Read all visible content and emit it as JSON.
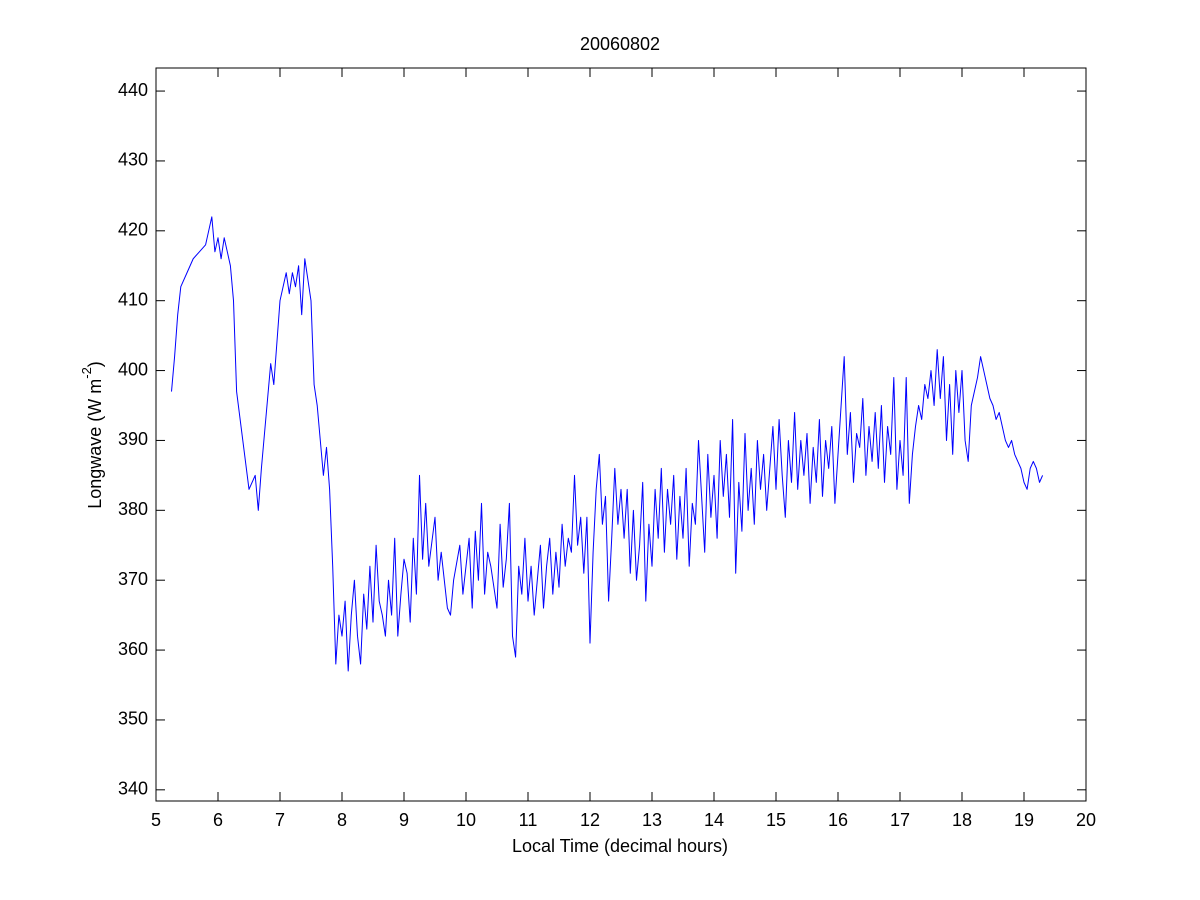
{
  "chart_data": {
    "type": "line",
    "title": "20060802",
    "x_label": "Local Time (decimal hours)",
    "y_label": [
      "Longwave (W m",
      "-2",
      ")"
    ],
    "xlim": [
      5,
      20
    ],
    "xticks": [
      5,
      6,
      7,
      8,
      9,
      10,
      11,
      12,
      13,
      14,
      15,
      16,
      17,
      18,
      19,
      20
    ],
    "ylim": [
      338.4,
      443.3
    ],
    "yticks": [
      340,
      350,
      360,
      370,
      380,
      390,
      400,
      410,
      420,
      430,
      440
    ],
    "grid": false,
    "x": [
      5.25,
      5.3,
      5.35,
      5.4,
      5.5,
      5.6,
      5.7,
      5.8,
      5.85,
      5.9,
      5.95,
      6.0,
      6.05,
      6.1,
      6.2,
      6.25,
      6.3,
      6.4,
      6.5,
      6.6,
      6.65,
      6.7,
      6.8,
      6.85,
      6.9,
      7.0,
      7.1,
      7.15,
      7.2,
      7.25,
      7.3,
      7.35,
      7.4,
      7.45,
      7.5,
      7.55,
      7.6,
      7.7,
      7.75,
      7.8,
      7.85,
      7.9,
      7.95,
      8.0,
      8.05,
      8.1,
      8.15,
      8.2,
      8.25,
      8.3,
      8.35,
      8.4,
      8.45,
      8.5,
      8.55,
      8.6,
      8.65,
      8.7,
      8.75,
      8.8,
      8.85,
      8.9,
      8.95,
      9.0,
      9.05,
      9.1,
      9.15,
      9.2,
      9.25,
      9.3,
      9.35,
      9.4,
      9.5,
      9.55,
      9.6,
      9.7,
      9.75,
      9.8,
      9.9,
      9.95,
      10.0,
      10.05,
      10.1,
      10.15,
      10.2,
      10.25,
      10.3,
      10.35,
      10.4,
      10.5,
      10.55,
      10.6,
      10.65,
      10.7,
      10.75,
      10.8,
      10.85,
      10.9,
      10.95,
      11.0,
      11.05,
      11.1,
      11.15,
      11.2,
      11.25,
      11.3,
      11.35,
      11.4,
      11.45,
      11.5,
      11.55,
      11.6,
      11.65,
      11.7,
      11.75,
      11.8,
      11.85,
      11.9,
      11.95,
      12.0,
      12.05,
      12.1,
      12.15,
      12.2,
      12.25,
      12.3,
      12.35,
      12.4,
      12.45,
      12.5,
      12.55,
      12.6,
      12.65,
      12.7,
      12.75,
      12.8,
      12.85,
      12.9,
      12.95,
      13.0,
      13.05,
      13.1,
      13.15,
      13.2,
      13.25,
      13.3,
      13.35,
      13.4,
      13.45,
      13.5,
      13.55,
      13.6,
      13.65,
      13.7,
      13.75,
      13.8,
      13.85,
      13.9,
      13.95,
      14.0,
      14.05,
      14.1,
      14.15,
      14.2,
      14.25,
      14.3,
      14.35,
      14.4,
      14.45,
      14.5,
      14.55,
      14.6,
      14.65,
      14.7,
      14.75,
      14.8,
      14.85,
      14.9,
      14.95,
      15.0,
      15.05,
      15.1,
      15.15,
      15.2,
      15.25,
      15.3,
      15.35,
      15.4,
      15.45,
      15.5,
      15.55,
      15.6,
      15.65,
      15.7,
      15.75,
      15.8,
      15.85,
      15.9,
      15.95,
      16.0,
      16.05,
      16.1,
      16.15,
      16.2,
      16.25,
      16.3,
      16.35,
      16.4,
      16.45,
      16.5,
      16.55,
      16.6,
      16.65,
      16.7,
      16.75,
      16.8,
      16.85,
      16.9,
      16.95,
      17.0,
      17.05,
      17.1,
      17.15,
      17.2,
      17.25,
      17.3,
      17.35,
      17.4,
      17.45,
      17.5,
      17.55,
      17.6,
      17.65,
      17.7,
      17.75,
      17.8,
      17.85,
      17.9,
      17.95,
      18.0,
      18.05,
      18.1,
      18.15,
      18.2,
      18.25,
      18.3,
      18.35,
      18.4,
      18.45,
      18.5,
      18.55,
      18.6,
      18.65,
      18.7,
      18.75,
      18.8,
      18.85,
      18.9,
      18.95,
      19.0,
      19.05,
      19.1,
      19.15,
      19.2,
      19.25,
      19.3
    ],
    "series": [
      {
        "color": "#0000ff",
        "values": [
          397,
          402,
          408,
          412,
          414,
          416,
          417,
          418,
          420,
          422,
          417,
          419,
          416,
          419,
          415,
          410,
          397,
          390,
          383,
          385,
          380,
          386,
          396,
          401,
          398,
          410,
          414,
          411,
          414,
          412,
          415,
          408,
          416,
          413,
          410,
          398,
          395,
          385,
          389,
          383,
          372,
          358,
          365,
          362,
          367,
          357,
          365,
          370,
          362,
          358,
          368,
          363,
          372,
          364,
          375,
          367,
          365,
          362,
          370,
          365,
          376,
          362,
          368,
          373,
          371,
          364,
          376,
          368,
          385,
          373,
          381,
          372,
          379,
          370,
          374,
          366,
          365,
          370,
          375,
          368,
          372,
          376,
          366,
          377,
          370,
          381,
          368,
          374,
          372,
          366,
          378,
          369,
          373,
          381,
          362,
          359,
          372,
          368,
          376,
          367,
          372,
          365,
          370,
          375,
          366,
          372,
          376,
          368,
          374,
          369,
          378,
          372,
          376,
          374,
          385,
          375,
          379,
          371,
          379,
          361,
          374,
          383,
          388,
          378,
          382,
          367,
          376,
          386,
          378,
          383,
          376,
          383,
          371,
          380,
          370,
          375,
          384,
          367,
          378,
          372,
          383,
          376,
          386,
          374,
          383,
          378,
          385,
          373,
          382,
          376,
          386,
          372,
          381,
          378,
          390,
          382,
          374,
          388,
          379,
          385,
          376,
          390,
          382,
          388,
          379,
          393,
          371,
          384,
          377,
          391,
          380,
          386,
          378,
          390,
          383,
          388,
          380,
          386,
          392,
          383,
          393,
          385,
          379,
          390,
          384,
          394,
          383,
          390,
          385,
          391,
          381,
          389,
          384,
          393,
          382,
          390,
          386,
          392,
          381,
          388,
          395,
          402,
          388,
          394,
          384,
          391,
          389,
          396,
          385,
          392,
          387,
          394,
          386,
          395,
          384,
          392,
          388,
          399,
          383,
          390,
          385,
          399,
          381,
          388,
          392,
          395,
          393,
          398,
          396,
          400,
          395,
          403,
          396,
          402,
          390,
          398,
          388,
          400,
          394,
          400,
          390,
          387,
          395,
          397,
          399,
          402,
          400,
          398,
          396,
          395,
          393,
          394,
          392,
          390,
          389,
          390,
          388,
          387,
          386,
          384,
          383,
          386,
          387,
          386,
          384,
          385
        ]
      }
    ]
  }
}
